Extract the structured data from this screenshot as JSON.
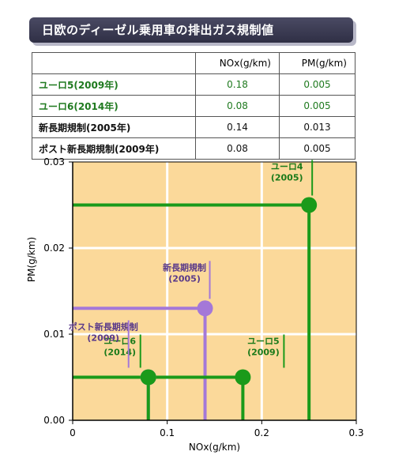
{
  "title": "日欧のディーゼル乗用車の排出ガス規制値",
  "table": {
    "headers": [
      "",
      "NOx(g/km)",
      "PM(g/km)"
    ],
    "rows": [
      {
        "label": "ユーロ5(2009年)",
        "nox": "0.18",
        "pm": "0.005"
      },
      {
        "label": "ユーロ6(2014年)",
        "nox": "0.08",
        "pm": "0.005"
      },
      {
        "label": "新長期規制(2005年)",
        "nox": "0.14",
        "pm": "0.013"
      },
      {
        "label": "ポスト新長期規制(2009年)",
        "nox": "0.08",
        "pm": "0.005"
      }
    ]
  },
  "chart_data": {
    "type": "scatter",
    "xlabel": "NOx(g/km)",
    "ylabel": "PM(g/km)",
    "xlim": [
      0,
      0.3
    ],
    "ylim": [
      0,
      0.03
    ],
    "xticks": [
      "0",
      "0.1",
      "0.2",
      "0.3"
    ],
    "yticks": [
      "0.00",
      "0.01",
      "0.02",
      "0.03"
    ],
    "grid": true,
    "points": [
      {
        "name": "ユーロ4",
        "year": "(2005)",
        "x": 0.25,
        "y": 0.025,
        "color": "#1a9a1a"
      },
      {
        "name": "ユーロ5",
        "year": "(2009)",
        "x": 0.18,
        "y": 0.005,
        "color": "#1a9a1a"
      },
      {
        "name": "ユーロ6",
        "year": "(2014)",
        "x": 0.08,
        "y": 0.005,
        "color": "#1a9a1a"
      },
      {
        "name": "新長期規制",
        "year": "(2005)",
        "x": 0.14,
        "y": 0.013,
        "color": "#a478d8"
      },
      {
        "name": "ポスト新長期規制",
        "year": "(2009)",
        "x": 0.08,
        "y": 0.005,
        "color": "#a478d8"
      }
    ],
    "colors": {
      "background": "#fbd99a",
      "grid": "#ffffff",
      "green": "#1a9a1a",
      "purple": "#a478d8"
    }
  }
}
